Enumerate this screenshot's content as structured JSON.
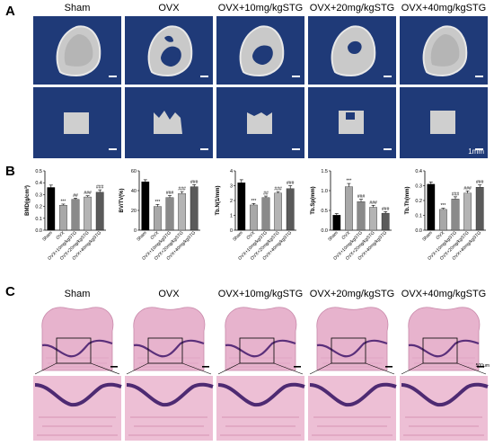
{
  "panels": {
    "a": "A",
    "b": "B",
    "c": "C"
  },
  "groups": [
    "Sham",
    "OVX",
    "OVX+10mg/kgSTG",
    "OVX+20mg/kgSTG",
    "OVX+40mg/kgSTG"
  ],
  "scale_ct": "1mm",
  "scale_he": "500μm",
  "colors": {
    "ct_bg": "#1f3a78",
    "bar_sham": "#000000",
    "bar_ovx": "#a8a8a8",
    "bar_10": "#8a8a8a",
    "bar_20": "#b4b4b4",
    "bar_40": "#5a5a5a",
    "he_bg": "#f4e9ef"
  },
  "chart_data": [
    {
      "type": "bar",
      "ylabel": "BMD(g/cm³)",
      "ylim": [
        0,
        0.5
      ],
      "yticks": [
        "0.0",
        "0.1",
        "0.2",
        "0.3",
        "0.4",
        "0.5"
      ],
      "categories": [
        "Sham",
        "OVX",
        "OVX+10mg/kgSTG",
        "OVX+20mg/kgSTG",
        "OVX+40mg/kgSTG"
      ],
      "values": [
        0.36,
        0.21,
        0.26,
        0.28,
        0.32
      ],
      "errors": [
        0.02,
        0.01,
        0.01,
        0.01,
        0.02
      ],
      "significance": [
        "",
        "***",
        "##",
        "###",
        "###"
      ]
    },
    {
      "type": "bar",
      "ylabel": "BV/TV(%)",
      "ylim": [
        0,
        60
      ],
      "yticks": [
        "0",
        "20",
        "40",
        "60"
      ],
      "categories": [
        "Sham",
        "OVX",
        "OVX+10mg/kgSTG",
        "OVX+20mg/kgSTG",
        "OVX+40mg/kgSTG"
      ],
      "values": [
        49,
        24,
        33,
        37,
        44
      ],
      "errors": [
        2,
        2,
        2,
        2,
        2
      ],
      "significance": [
        "",
        "***",
        "###",
        "###",
        "###"
      ]
    },
    {
      "type": "bar",
      "ylabel": "Tb.N(1/mm)",
      "ylim": [
        0,
        4
      ],
      "yticks": [
        "0",
        "1",
        "2",
        "3",
        "4"
      ],
      "categories": [
        "Sham",
        "OVX",
        "OVX+10mg/kgSTG",
        "OVX+20mg/kgSTG",
        "OVX+40mg/kgSTG"
      ],
      "values": [
        3.2,
        1.7,
        2.2,
        2.5,
        2.8
      ],
      "errors": [
        0.2,
        0.1,
        0.1,
        0.1,
        0.2
      ],
      "significance": [
        "",
        "***",
        "##",
        "###",
        "###"
      ]
    },
    {
      "type": "bar",
      "ylabel": "Tb.Sp(mm)",
      "ylim": [
        0,
        1.5
      ],
      "yticks": [
        "0.0",
        "0.5",
        "1.0",
        "1.5"
      ],
      "categories": [
        "Sham",
        "OVX",
        "OVX+10mg/kgSTG",
        "OVX+20mg/kgSTG",
        "OVX+40mg/kgSTG"
      ],
      "values": [
        0.38,
        1.1,
        0.72,
        0.58,
        0.43
      ],
      "errors": [
        0.04,
        0.08,
        0.06,
        0.05,
        0.04
      ],
      "significance": [
        "",
        "***",
        "###",
        "###",
        "###"
      ]
    },
    {
      "type": "bar",
      "ylabel": "Tb.Th(mm)",
      "ylim": [
        0,
        0.4
      ],
      "yticks": [
        "0.0",
        "0.1",
        "0.2",
        "0.3",
        "0.4"
      ],
      "categories": [
        "Sham",
        "OVX",
        "OVX+10mg/kgSTG",
        "OVX+20mg/kgSTG",
        "OVX+40mg/kgSTG"
      ],
      "values": [
        0.31,
        0.14,
        0.21,
        0.25,
        0.29
      ],
      "errors": [
        0.015,
        0.008,
        0.015,
        0.015,
        0.015
      ],
      "significance": [
        "",
        "***",
        "###",
        "###",
        "###"
      ]
    }
  ]
}
